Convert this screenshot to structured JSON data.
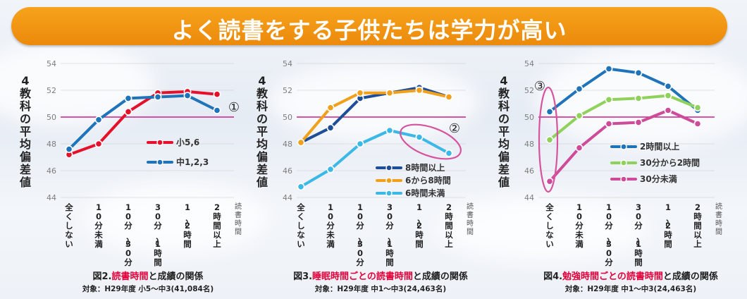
{
  "title": "よく読書をする子供たちは学力が高い",
  "chart_data": [
    {
      "type": "line",
      "ylabel": "4教科の平均偏差値",
      "xlabel": "読書時間",
      "categories": [
        "全くしない",
        "10分未満",
        "10分〜30分",
        "30分〜1時間",
        "1〜2時間",
        "2時間以上"
      ],
      "ylim": [
        44,
        54
      ],
      "yticks": [
        44,
        46,
        48,
        50,
        52,
        54
      ],
      "reference_line": 50,
      "series": [
        {
          "name": "小5,6",
          "color": "#e5102a",
          "values": [
            47.2,
            48.0,
            50.4,
            51.8,
            51.9,
            51.7
          ]
        },
        {
          "name": "中1,2,3",
          "color": "#1f73b9",
          "values": [
            47.6,
            49.8,
            51.4,
            51.5,
            51.6,
            50.5
          ]
        }
      ],
      "annotation": "①",
      "caption_prefix": "図2.",
      "caption_highlight": "読書時間",
      "caption_suffix": "と成績の関係",
      "subcaption": "対象：H29年度 小5〜中3(41,084名)"
    },
    {
      "type": "line",
      "ylabel": "4教科の平均偏差値",
      "xlabel": "読書時間",
      "categories": [
        "全くしない",
        "10分未満",
        "10分〜30分",
        "30分〜1時間",
        "1〜2時間",
        "2時間以上"
      ],
      "ylim": [
        44,
        54
      ],
      "yticks": [
        44,
        46,
        48,
        50,
        52,
        54
      ],
      "reference_line": 50,
      "series": [
        {
          "name": "8時間以上",
          "color": "#1f4e98",
          "values": [
            48.1,
            49.2,
            51.4,
            51.8,
            52.2,
            51.5
          ]
        },
        {
          "name": "6から8時間",
          "color": "#f0a01a",
          "values": [
            48.1,
            50.7,
            51.8,
            51.8,
            52.0,
            51.5
          ]
        },
        {
          "name": "6時間未満",
          "color": "#3bb8e6",
          "values": [
            44.8,
            46.1,
            48.0,
            49.0,
            48.5,
            47.3
          ]
        }
      ],
      "annotation": "②",
      "caption_prefix": "図3.",
      "caption_highlight": "睡眠時間ごとの読書時間",
      "caption_suffix": "と成績の関係",
      "subcaption": "対象：H29年度 中1〜中3(24,463名)"
    },
    {
      "type": "line",
      "ylabel": "4教科の平均偏差値",
      "xlabel": "読書時間",
      "categories": [
        "全くしない",
        "10分未満",
        "10分〜30分",
        "30分〜1時間",
        "1〜2時間",
        "2時間以上"
      ],
      "ylim": [
        44,
        54
      ],
      "yticks": [
        44,
        46,
        48,
        50,
        52,
        54
      ],
      "reference_line": 50,
      "series": [
        {
          "name": "2時間以上",
          "color": "#1f73b9",
          "values": [
            50.4,
            52.1,
            53.6,
            53.3,
            52.3,
            50.5
          ]
        },
        {
          "name": "30分から2時間",
          "color": "#8fd15a",
          "values": [
            48.3,
            50.1,
            51.3,
            51.4,
            51.6,
            50.7
          ]
        },
        {
          "name": "30分未満",
          "color": "#cd4b99",
          "values": [
            45.2,
            47.7,
            49.5,
            49.6,
            50.5,
            49.5
          ]
        }
      ],
      "annotation": "③",
      "caption_prefix": "図4.",
      "caption_highlight": "勉強時間ごとの読書時間",
      "caption_suffix": "と成績の関係",
      "subcaption": "対象：H29年度 中1〜中3(24,463名)"
    }
  ]
}
